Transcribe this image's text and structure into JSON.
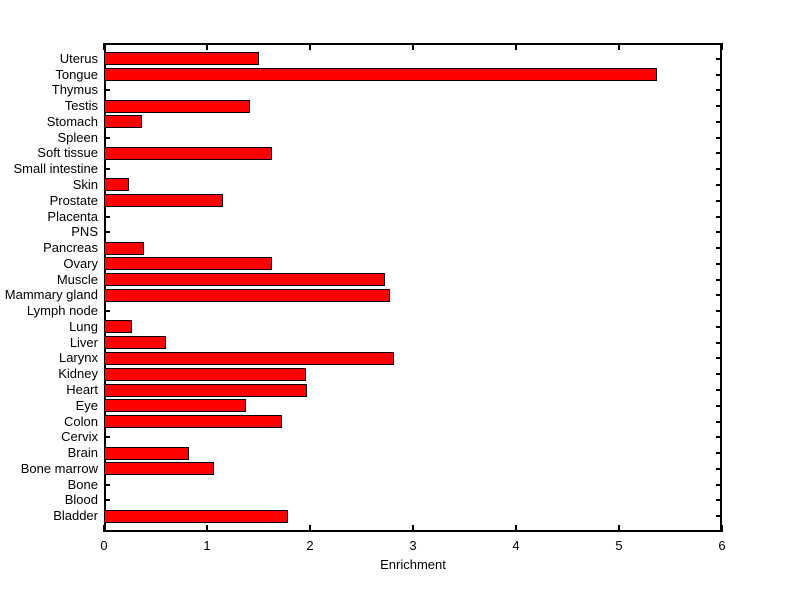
{
  "figure": {
    "background_color": "#ffffff"
  },
  "chart_data": {
    "type": "bar",
    "orientation": "horizontal",
    "title": "",
    "xlabel": "Enrichment",
    "ylabel": "",
    "categories": [
      "Uterus",
      "Tongue",
      "Thymus",
      "Testis",
      "Stomach",
      "Spleen",
      "Soft tissue",
      "Small intestine",
      "Skin",
      "Prostate",
      "Placenta",
      "PNS",
      "Pancreas",
      "Ovary",
      "Muscle",
      "Mammary gland",
      "Lymph node",
      "Lung",
      "Liver",
      "Larynx",
      "Kidney",
      "Heart",
      "Eye",
      "Colon",
      "Cervix",
      "Brain",
      "Bone marrow",
      "Bone",
      "Blood",
      "Bladder"
    ],
    "values": [
      1.5,
      5.37,
      0,
      1.42,
      0.37,
      0,
      1.63,
      0,
      0.24,
      1.16,
      0,
      0,
      0.39,
      1.63,
      2.73,
      2.78,
      0,
      0.27,
      0.6,
      2.82,
      1.96,
      1.97,
      1.38,
      1.73,
      0,
      0.83,
      1.07,
      0,
      0,
      1.79
    ],
    "xlim": [
      0,
      6
    ],
    "xticks": [
      0,
      1,
      2,
      3,
      4,
      5,
      6
    ],
    "grid": false,
    "legend": "none",
    "bar_color": "#ff0000",
    "bar_edge_color": "#000000",
    "axis_color": "#000000"
  }
}
